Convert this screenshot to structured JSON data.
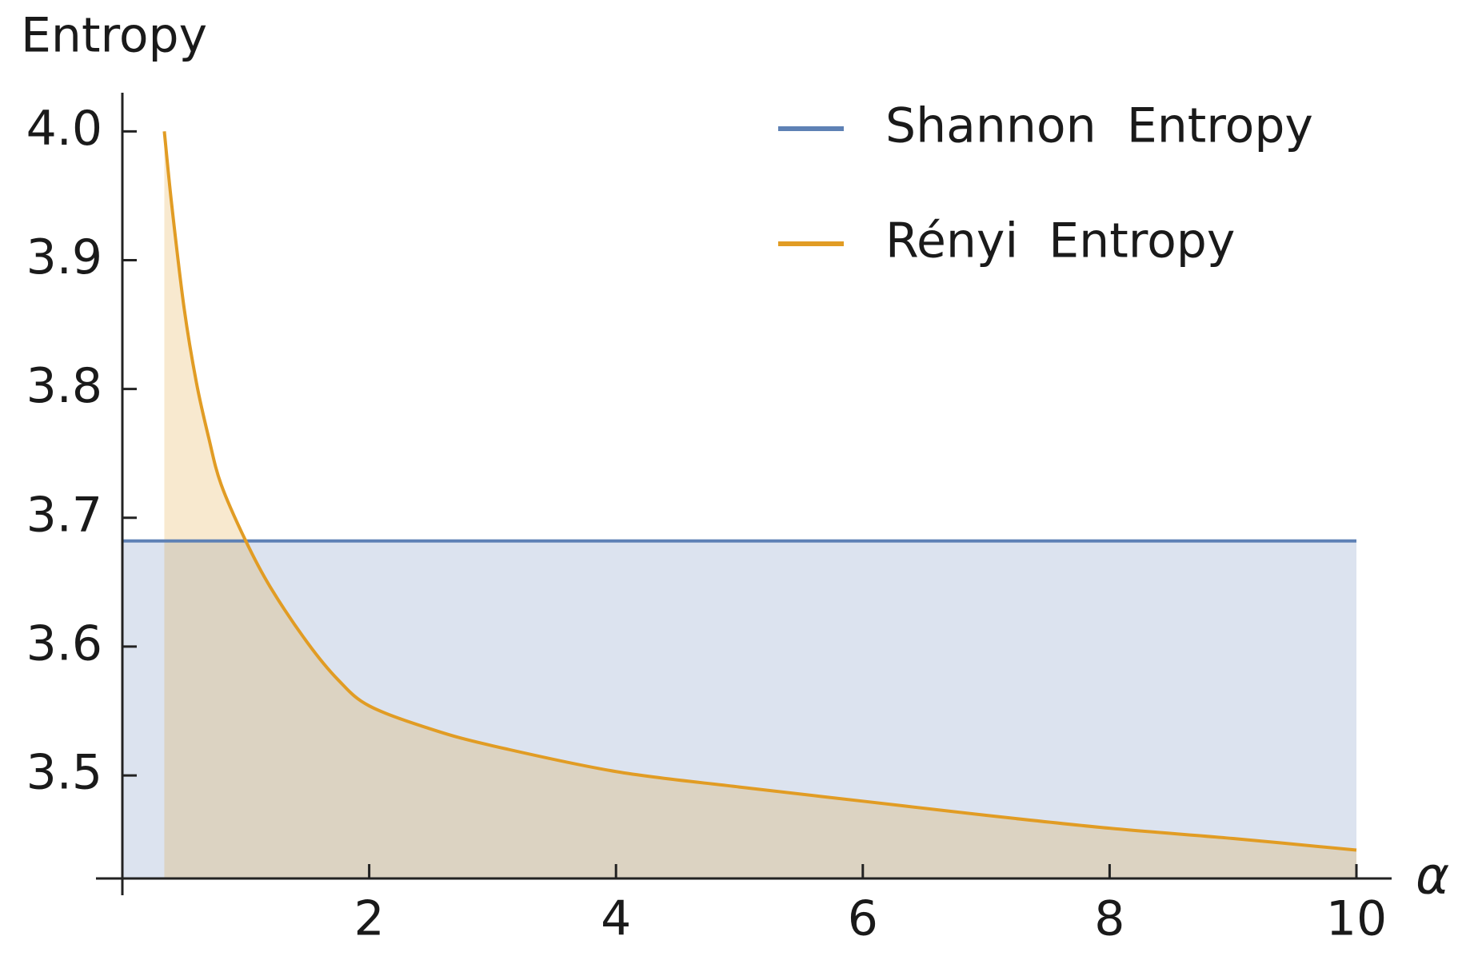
{
  "chart_data": {
    "type": "line",
    "y_label": "Entropy",
    "x_label": "α",
    "xlim": [
      0,
      10
    ],
    "xticks": [
      2,
      4,
      6,
      8,
      10
    ],
    "ylim": [
      3.42,
      4.03
    ],
    "yticks": [
      3.5,
      3.6,
      3.7,
      3.8,
      3.9,
      {
        "value": 4,
        "label": "4.0"
      }
    ],
    "filling": true,
    "legend": "top-right",
    "series": [
      {
        "name": "Shannon  Entropy",
        "color": "#5e81b5",
        "x": [
          0,
          10
        ],
        "values": [
          3.682,
          3.682
        ]
      },
      {
        "name": "Rényi  Entropy",
        "color": "#e19c24",
        "x": [
          0.34,
          0.4,
          0.5,
          0.6,
          0.7,
          0.8,
          1,
          1.2,
          1.5,
          1.75,
          2,
          2.5,
          3,
          4,
          5,
          6,
          7,
          8,
          9,
          10
        ],
        "values": [
          4.0,
          3.943,
          3.863,
          3.805,
          3.762,
          3.726,
          3.682,
          3.646,
          3.603,
          3.574,
          3.554,
          3.536,
          3.523,
          3.503,
          3.491,
          3.48,
          3.469,
          3.459,
          3.451,
          3.442
        ]
      }
    ]
  }
}
